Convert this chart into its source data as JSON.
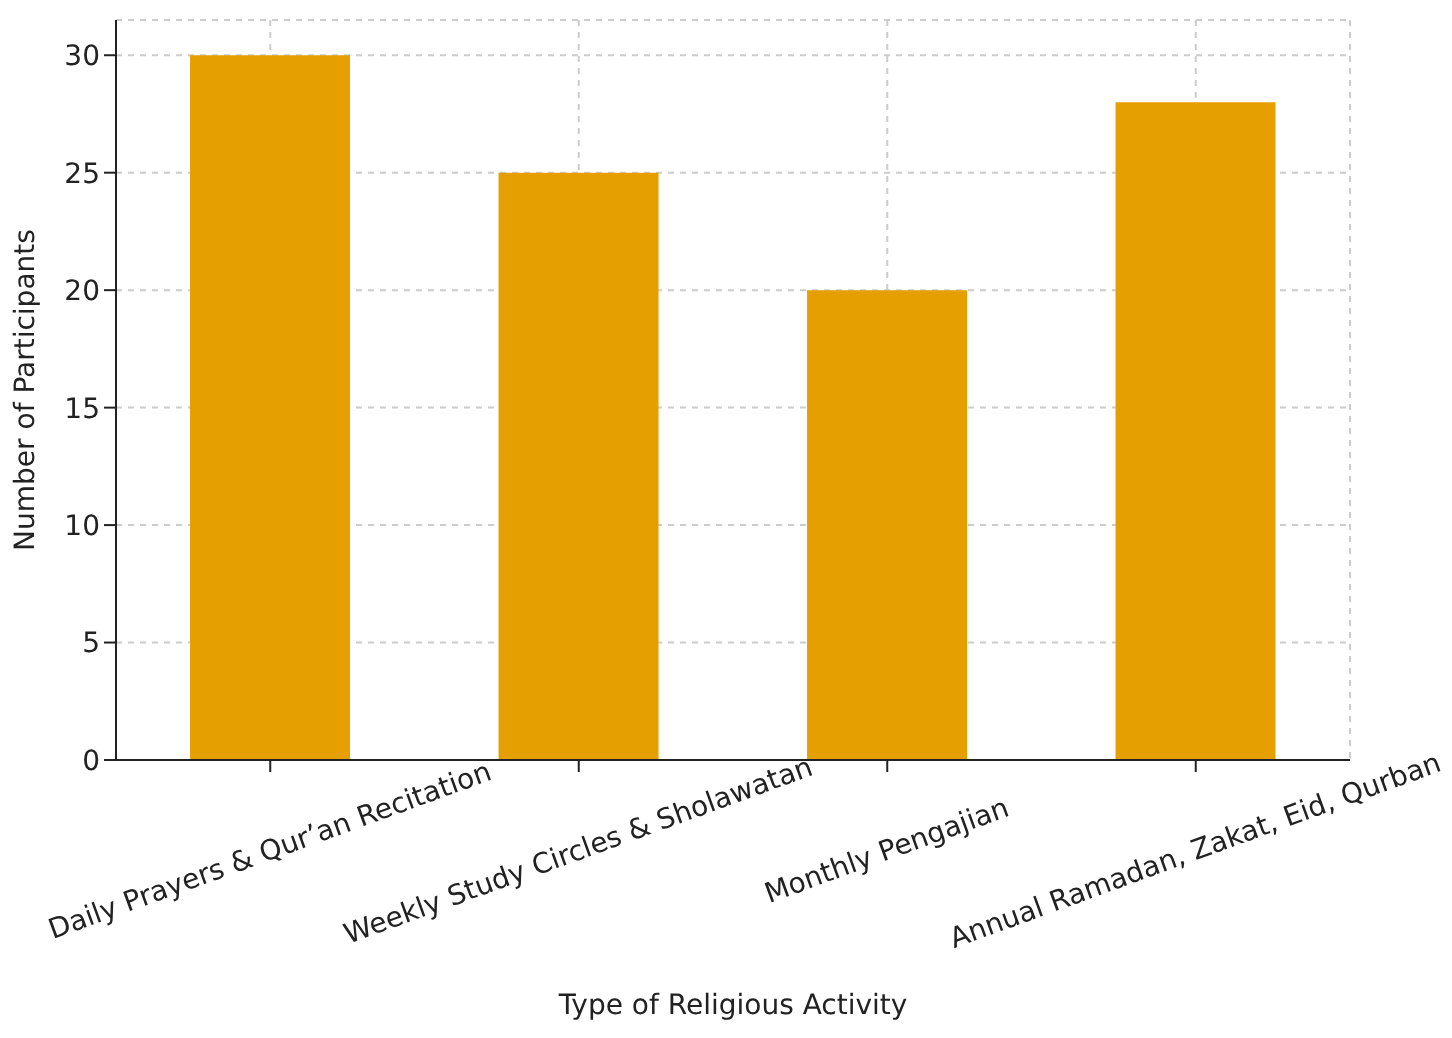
{
  "chart_data": {
    "type": "bar",
    "xlabel": "Type of Religious Activity",
    "ylabel": "Number of Participants",
    "categories": [
      "Daily Prayers & Qur’an Recitation",
      "Weekly Study Circles & Sholawatan",
      "Monthly Pengajian",
      "Annual Ramadan, Zakat, Eid, Qurban"
    ],
    "values": [
      30,
      25,
      20,
      28
    ],
    "color": "#e69f00",
    "ylim": [
      0,
      31.5
    ],
    "yticks": [
      0,
      5,
      10,
      15,
      20,
      25,
      30
    ],
    "grid": true
  }
}
